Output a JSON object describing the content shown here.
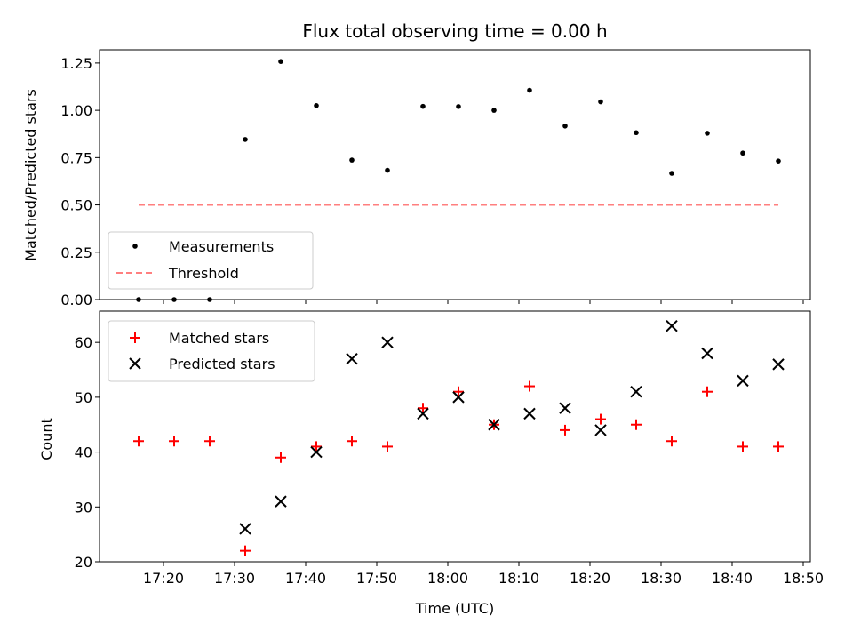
{
  "chart_data": [
    {
      "type": "scatter",
      "title": "Flux total observing time = 0.00 h",
      "xlabel": "",
      "ylabel": "Matched/Predicted stars",
      "xlim": [
        1031,
        1131
      ],
      "ylim": [
        0.0,
        1.32
      ],
      "yticks": [
        0.0,
        0.25,
        0.5,
        0.75,
        1.0,
        1.25
      ],
      "ytick_labels": [
        "0.00",
        "0.25",
        "0.50",
        "0.75",
        "1.00",
        "1.25"
      ],
      "x": [
        1036.5,
        1041.5,
        1046.5,
        1051.5,
        1056.5,
        1061.5,
        1066.5,
        1071.5,
        1076.5,
        1081.5,
        1086.5,
        1091.5,
        1096.5,
        1101.5,
        1106.5,
        1111.5,
        1116.5,
        1121.5,
        1126.5
      ],
      "series": [
        {
          "name": "Measurements",
          "color": "#000000",
          "marker": "dot",
          "values": [
            0.0,
            0.0,
            0.0,
            0.846,
            1.258,
            1.025,
            0.737,
            0.683,
            1.021,
            1.02,
            1.0,
            1.106,
            0.917,
            1.045,
            0.882,
            0.667,
            0.879,
            0.774,
            0.732
          ]
        },
        {
          "name": "Threshold",
          "color": "#ff7f7f",
          "marker": "dashed-line",
          "x_range": [
            1036.5,
            1126.5
          ],
          "value": 0.5
        }
      ],
      "legend": "lower-left"
    },
    {
      "type": "scatter",
      "title": "",
      "xlabel": "Time (UTC)",
      "ylabel": "Count",
      "xlim": [
        1031,
        1131
      ],
      "ylim": [
        20,
        65.7
      ],
      "yticks": [
        20,
        30,
        40,
        50,
        60
      ],
      "ytick_labels": [
        "20",
        "30",
        "40",
        "50",
        "60"
      ],
      "xticks": [
        1040,
        1050,
        1060,
        1070,
        1080,
        1090,
        1100,
        1110,
        1120,
        1130
      ],
      "xtick_labels": [
        "17:20",
        "17:30",
        "17:40",
        "17:50",
        "18:00",
        "18:10",
        "18:20",
        "18:30",
        "18:40",
        "18:50"
      ],
      "x": [
        1036.5,
        1041.5,
        1046.5,
        1051.5,
        1056.5,
        1061.5,
        1066.5,
        1071.5,
        1076.5,
        1081.5,
        1086.5,
        1091.5,
        1096.5,
        1101.5,
        1106.5,
        1111.5,
        1116.5,
        1121.5,
        1126.5
      ],
      "series": [
        {
          "name": "Matched stars",
          "color": "#ff0000",
          "marker": "plus",
          "values": [
            42,
            42,
            42,
            22,
            39,
            41,
            42,
            41,
            48,
            51,
            45,
            52,
            44,
            46,
            45,
            42,
            51,
            41,
            41
          ]
        },
        {
          "name": "Predicted stars",
          "color": "#000000",
          "marker": "x",
          "values": [
            null,
            null,
            null,
            26,
            31,
            40,
            57,
            60,
            47,
            50,
            45,
            47,
            48,
            44,
            51,
            63,
            58,
            53,
            56
          ]
        }
      ],
      "legend": "upper-left"
    }
  ]
}
